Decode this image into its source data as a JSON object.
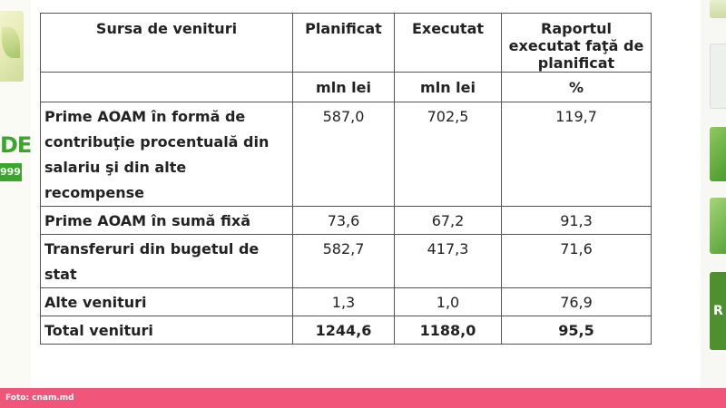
{
  "side_logo": {
    "text": "DE",
    "badge": "999"
  },
  "right_banner": {
    "text": "R"
  },
  "table": {
    "headers": [
      "Sursa de venituri",
      "Planificat",
      "Executat",
      "Raportul executat faţă de planificat"
    ],
    "units": [
      "",
      "mln lei",
      "mln lei",
      "%"
    ],
    "rows": [
      {
        "source": "Prime AOAM în formă de contribuţie procentuală din salariu şi din alte recompense",
        "planned": "587,0",
        "executed": "702,5",
        "ratio": "119,7"
      },
      {
        "source": "Prime AOAM în sumă fixă",
        "planned": "73,6",
        "executed": "67,2",
        "ratio": "91,3"
      },
      {
        "source": "Transferuri din bugetul de stat",
        "planned": "582,7",
        "executed": "417,3",
        "ratio": "71,6"
      },
      {
        "source": "Alte venituri",
        "planned": "1,3",
        "executed": "1,0",
        "ratio": "76,9"
      }
    ],
    "total": {
      "source": "Total venituri",
      "planned": "1244,6",
      "executed": "1188,0",
      "ratio": "95,5"
    }
  },
  "caption": "Foto: cnam.md",
  "colors": {
    "caption_bar": "#f2557a",
    "logo_green": "#3aa52b",
    "border": "#555555"
  }
}
